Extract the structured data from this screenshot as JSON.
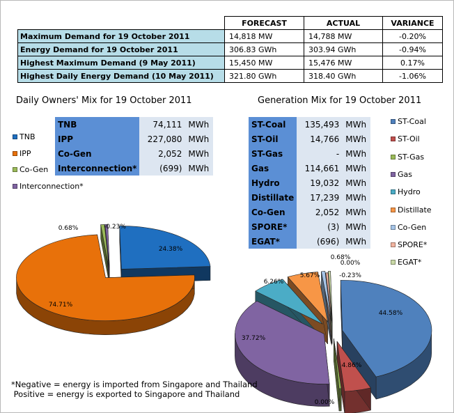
{
  "summary_table": {
    "headers": [
      "FORECAST",
      "ACTUAL",
      "VARIANCE"
    ],
    "rows": [
      {
        "label": "Maximum Demand for 19 October 2011",
        "forecast": "14,818  MW",
        "actual": "14,788  MW",
        "variance": "-0.20%"
      },
      {
        "label": "Energy Demand for 19 October 2011",
        "forecast": "306.83  GWh",
        "actual": "303.94  GWh",
        "variance": "-0.94%"
      },
      {
        "label": "Highest Maximum Demand (9 May 2011)",
        "forecast": "15,450  MW",
        "actual": "15,476  MW",
        "variance": "0.17%"
      },
      {
        "label": "Highest Daily Energy Demand (10 May 2011)",
        "forecast": "321.80  GWh",
        "actual": "318.40  GWh",
        "variance": "-1.06%"
      }
    ]
  },
  "owners_mix": {
    "title": "Daily Owners' Mix for 19 October 2011",
    "rows": [
      {
        "name": "TNB",
        "value": "74,111",
        "unit": "MWh"
      },
      {
        "name": "IPP",
        "value": "227,080",
        "unit": "MWh"
      },
      {
        "name": "Co-Gen",
        "value": "2,052",
        "unit": "MWh"
      },
      {
        "name": "Interconnection*",
        "value": "(699)",
        "unit": "MWh"
      }
    ],
    "legend": [
      "TNB",
      "IPP",
      "Co-Gen",
      "Interconnection*"
    ]
  },
  "generation_mix": {
    "title": "Generation Mix for 19 October 2011",
    "rows": [
      {
        "name": "ST-Coal",
        "value": "135,493",
        "unit": "MWh"
      },
      {
        "name": "ST-Oil",
        "value": "14,766",
        "unit": "MWh"
      },
      {
        "name": "ST-Gas",
        "value": "-",
        "unit": "MWh"
      },
      {
        "name": "Gas",
        "value": "114,661",
        "unit": "MWh"
      },
      {
        "name": "Hydro",
        "value": "19,032",
        "unit": "MWh"
      },
      {
        "name": "Distillate",
        "value": "17,239",
        "unit": "MWh"
      },
      {
        "name": "Co-Gen",
        "value": "2,052",
        "unit": "MWh"
      },
      {
        "name": "SPORE*",
        "value": "(3)",
        "unit": "MWh"
      },
      {
        "name": "EGAT*",
        "value": "(696)",
        "unit": "MWh"
      }
    ],
    "legend": [
      "ST-Coal",
      "ST-Oil",
      "ST-Gas",
      "Gas",
      "Hydro",
      "Distillate",
      "Co-Gen",
      "SPORE*",
      "EGAT*"
    ]
  },
  "chart_data": [
    {
      "type": "pie",
      "title": "Daily Owners' Mix for 19 October 2011",
      "categories": [
        "TNB",
        "IPP",
        "Co-Gen",
        "Interconnection*"
      ],
      "values": [
        24.38,
        74.71,
        0.68,
        -0.23
      ],
      "labels": [
        "24.38%",
        "74.71%",
        "0.68%",
        "-0.23%"
      ],
      "colors": [
        "#1f6fc0",
        "#e8710a",
        "#9bbb59",
        "#8064a2"
      ]
    },
    {
      "type": "pie",
      "title": "Generation Mix for 19 October 2011",
      "categories": [
        "ST-Coal",
        "ST-Oil",
        "ST-Gas",
        "Gas",
        "Hydro",
        "Distillate",
        "Co-Gen",
        "SPORE*",
        "EGAT*"
      ],
      "values": [
        44.58,
        4.86,
        0.0,
        37.72,
        6.26,
        5.67,
        0.68,
        0.0,
        -0.23
      ],
      "labels": [
        "44.58%",
        "4.86%",
        "0.00%",
        "37.72%",
        "6.26%",
        "5.67%",
        "0.68%",
        "0.00%",
        "-0.23%"
      ],
      "colors": [
        "#4f81bd",
        "#c0504d",
        "#9bbb59",
        "#8064a2",
        "#4bacc6",
        "#f79646",
        "#a6c5e8",
        "#f2b4a0",
        "#c9d9a6"
      ]
    }
  ],
  "footnote": {
    "line1": "*Negative = energy is imported from Singapore and Thailand",
    "line2": " Positive = energy is exported to Singapore and Thailand"
  }
}
